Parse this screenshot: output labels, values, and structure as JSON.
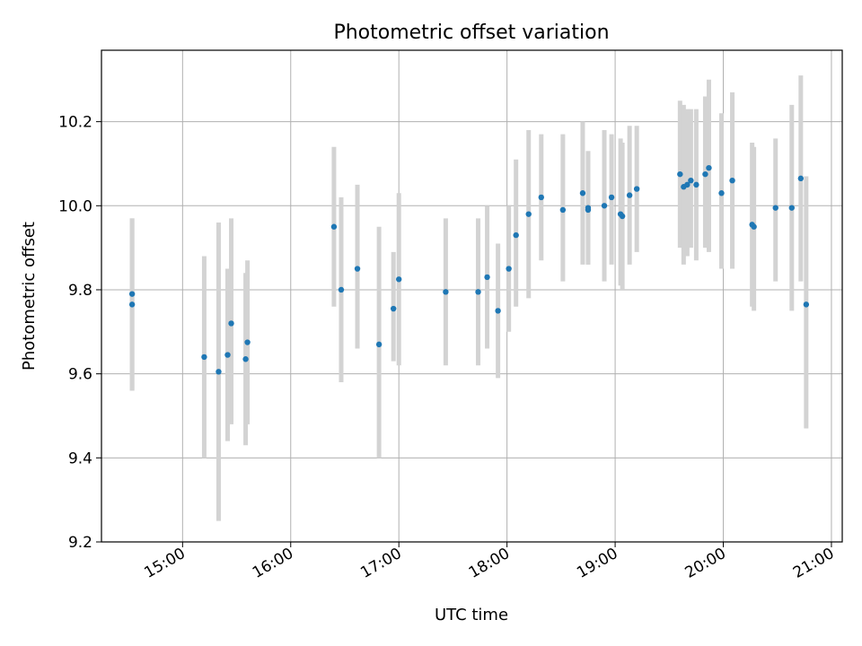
{
  "chart_data": {
    "type": "scatter",
    "title": "Photometric offset variation",
    "xlabel": "UTC time",
    "ylabel": "Photometric offset",
    "grid": true,
    "xlim": [
      "14:15",
      "21:06"
    ],
    "ylim": [
      9.2,
      10.37
    ],
    "x_ticks": [
      "15:00",
      "16:00",
      "17:00",
      "18:00",
      "19:00",
      "20:00",
      "21:00"
    ],
    "y_ticks": [
      "9.2",
      "9.4",
      "9.6",
      "9.8",
      "10.0",
      "10.2"
    ],
    "colors": {
      "point": "#1f77b4",
      "errorbar": "#d3d3d3",
      "grid": "#b0b0b0"
    },
    "points": [
      {
        "x": "14:32",
        "y": 9.79,
        "err_low": 9.56,
        "err_high": 9.97
      },
      {
        "x": "14:32",
        "y": 9.765,
        "err_low": 9.56,
        "err_high": 9.97
      },
      {
        "x": "15:12",
        "y": 9.64,
        "err_low": 9.4,
        "err_high": 9.88
      },
      {
        "x": "15:20",
        "y": 9.605,
        "err_low": 9.25,
        "err_high": 9.96
      },
      {
        "x": "15:25",
        "y": 9.645,
        "err_low": 9.44,
        "err_high": 9.85
      },
      {
        "x": "15:27",
        "y": 9.72,
        "err_low": 9.48,
        "err_high": 9.97
      },
      {
        "x": "15:35",
        "y": 9.635,
        "err_low": 9.43,
        "err_high": 9.84
      },
      {
        "x": "15:36",
        "y": 9.675,
        "err_low": 9.48,
        "err_high": 9.87
      },
      {
        "x": "16:24",
        "y": 9.95,
        "err_low": 9.76,
        "err_high": 10.14
      },
      {
        "x": "16:28",
        "y": 9.8,
        "err_low": 9.58,
        "err_high": 10.02
      },
      {
        "x": "16:37",
        "y": 9.85,
        "err_low": 9.66,
        "err_high": 10.05
      },
      {
        "x": "16:49",
        "y": 9.67,
        "err_low": 9.4,
        "err_high": 9.95
      },
      {
        "x": "16:57",
        "y": 9.755,
        "err_low": 9.63,
        "err_high": 9.89
      },
      {
        "x": "17:00",
        "y": 9.825,
        "err_low": 9.62,
        "err_high": 10.03
      },
      {
        "x": "17:26",
        "y": 9.795,
        "err_low": 9.62,
        "err_high": 9.97
      },
      {
        "x": "17:44",
        "y": 9.795,
        "err_low": 9.62,
        "err_high": 9.97
      },
      {
        "x": "17:49",
        "y": 9.83,
        "err_low": 9.66,
        "err_high": 10.0
      },
      {
        "x": "17:55",
        "y": 9.75,
        "err_low": 9.59,
        "err_high": 9.91
      },
      {
        "x": "18:01",
        "y": 9.85,
        "err_low": 9.7,
        "err_high": 10.0
      },
      {
        "x": "18:05",
        "y": 9.93,
        "err_low": 9.76,
        "err_high": 10.11
      },
      {
        "x": "18:12",
        "y": 9.98,
        "err_low": 9.78,
        "err_high": 10.18
      },
      {
        "x": "18:19",
        "y": 10.02,
        "err_low": 9.87,
        "err_high": 10.17
      },
      {
        "x": "18:31",
        "y": 9.99,
        "err_low": 9.82,
        "err_high": 10.17
      },
      {
        "x": "18:42",
        "y": 10.03,
        "err_low": 9.86,
        "err_high": 10.2
      },
      {
        "x": "18:45",
        "y": 9.99,
        "err_low": 9.86,
        "err_high": 10.13
      },
      {
        "x": "18:45",
        "y": 9.995,
        "err_low": 9.86,
        "err_high": 10.13
      },
      {
        "x": "18:54",
        "y": 10.0,
        "err_low": 9.82,
        "err_high": 10.18
      },
      {
        "x": "18:58",
        "y": 10.02,
        "err_low": 9.86,
        "err_high": 10.17
      },
      {
        "x": "19:03",
        "y": 9.98,
        "err_low": 9.81,
        "err_high": 10.16
      },
      {
        "x": "19:04",
        "y": 9.975,
        "err_low": 9.8,
        "err_high": 10.15
      },
      {
        "x": "19:08",
        "y": 10.025,
        "err_low": 9.86,
        "err_high": 10.19
      },
      {
        "x": "19:12",
        "y": 10.04,
        "err_low": 9.89,
        "err_high": 10.19
      },
      {
        "x": "19:36",
        "y": 10.075,
        "err_low": 9.9,
        "err_high": 10.25
      },
      {
        "x": "19:38",
        "y": 10.045,
        "err_low": 9.86,
        "err_high": 10.24
      },
      {
        "x": "19:40",
        "y": 10.05,
        "err_low": 9.88,
        "err_high": 10.23
      },
      {
        "x": "19:42",
        "y": 10.06,
        "err_low": 9.9,
        "err_high": 10.23
      },
      {
        "x": "19:45",
        "y": 10.05,
        "err_low": 9.87,
        "err_high": 10.23
      },
      {
        "x": "19:50",
        "y": 10.075,
        "err_low": 9.9,
        "err_high": 10.26
      },
      {
        "x": "19:52",
        "y": 10.09,
        "err_low": 9.89,
        "err_high": 10.3
      },
      {
        "x": "19:59",
        "y": 10.03,
        "err_low": 9.85,
        "err_high": 10.22
      },
      {
        "x": "20:05",
        "y": 10.06,
        "err_low": 9.85,
        "err_high": 10.27
      },
      {
        "x": "20:16",
        "y": 9.955,
        "err_low": 9.76,
        "err_high": 10.15
      },
      {
        "x": "20:17",
        "y": 9.95,
        "err_low": 9.75,
        "err_high": 10.14
      },
      {
        "x": "20:29",
        "y": 9.995,
        "err_low": 9.82,
        "err_high": 10.16
      },
      {
        "x": "20:38",
        "y": 9.995,
        "err_low": 9.75,
        "err_high": 10.24
      },
      {
        "x": "20:43",
        "y": 10.065,
        "err_low": 9.82,
        "err_high": 10.31
      },
      {
        "x": "20:46",
        "y": 9.765,
        "err_low": 9.47,
        "err_high": 10.07
      }
    ]
  }
}
